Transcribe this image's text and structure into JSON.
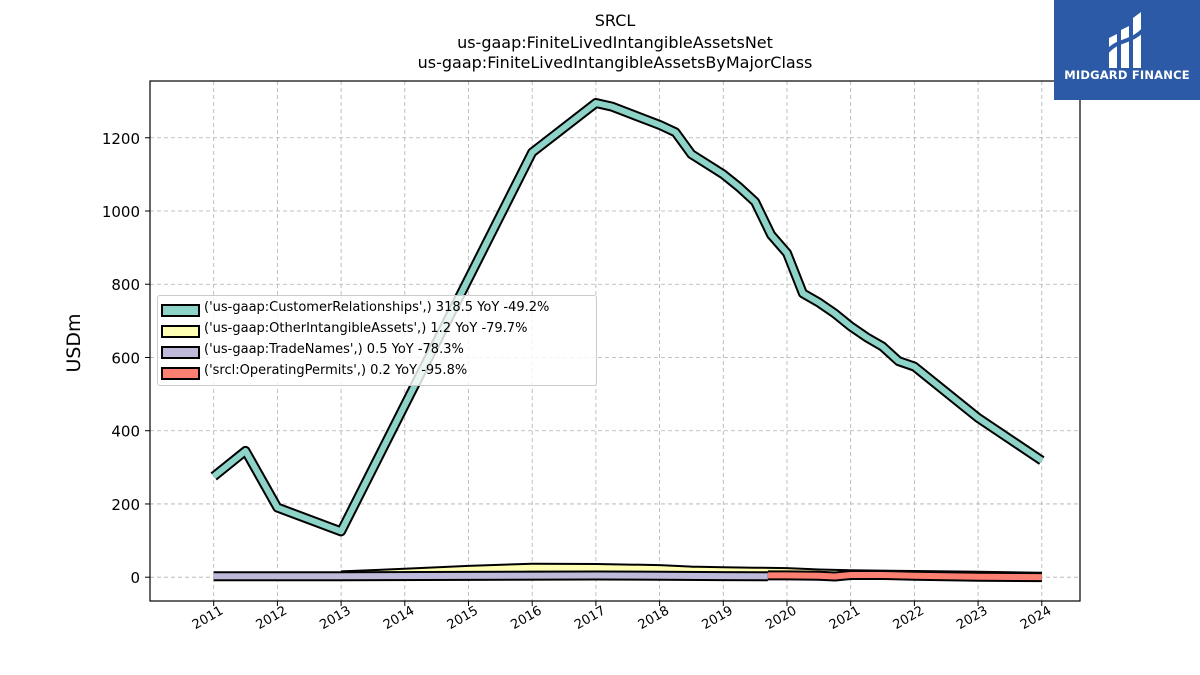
{
  "title": {
    "line1": "SRCL",
    "line2": "us-gaap:FiniteLivedIntangibleAssetsNet",
    "line3": "us-gaap:FiniteLivedIntangibleAssetsByMajorClass"
  },
  "logo": {
    "text": "MIDGARD FINANCE",
    "color": "#2d5aa6"
  },
  "legend": [
    {
      "label": "('us-gaap:CustomerRelationships',) 318.5 YoY -49.2%",
      "color": "#8dd3c7"
    },
    {
      "label": "('us-gaap:OtherIntangibleAssets',) 1.2 YoY -79.7%",
      "color": "#ffffb3"
    },
    {
      "label": "('us-gaap:TradeNames',) 0.5 YoY -78.3%",
      "color": "#bebada"
    },
    {
      "label": "('srcl:OperatingPermits',) 0.2 YoY -95.8%",
      "color": "#fb8072"
    }
  ],
  "chart_data": {
    "type": "line",
    "ylabel": "USDm",
    "xlabel": "",
    "ylim": [
      -65,
      1355
    ],
    "xlim": [
      2010.0,
      2024.6
    ],
    "yticks": [
      0,
      200,
      400,
      600,
      800,
      1000,
      1200
    ],
    "xticks": [
      "2011",
      "2012",
      "2013",
      "2014",
      "2015",
      "2016",
      "2017",
      "2018",
      "2019",
      "2020",
      "2021",
      "2022",
      "2023",
      "2024"
    ],
    "grid": true,
    "legend_position": "center-left",
    "series": [
      {
        "name": "('us-gaap:CustomerRelationships',)",
        "color": "#8dd3c7",
        "x": [
          2011.0,
          2011.5,
          2012.0,
          2013.0,
          2016.0,
          2017.0,
          2017.25,
          2018.0,
          2018.25,
          2018.5,
          2019.0,
          2019.25,
          2019.5,
          2019.75,
          2020.0,
          2020.25,
          2020.5,
          2020.75,
          2021.0,
          2021.25,
          2021.5,
          2021.75,
          2022.0,
          2023.0,
          2024.0
        ],
        "y": [
          275,
          345,
          190,
          125,
          1160,
          1295,
          1285,
          1235,
          1215,
          1155,
          1100,
          1065,
          1025,
          935,
          885,
          775,
          750,
          720,
          685,
          655,
          630,
          590,
          575,
          435,
          318.5
        ]
      },
      {
        "name": "('us-gaap:OtherIntangibleAssets',)",
        "color": "#ffffb3",
        "x": [
          2013.0,
          2014.0,
          2015.0,
          2016.0,
          2017.0,
          2018.0,
          2018.5,
          2019.0,
          2019.5,
          2020.0,
          2020.5,
          2021.0,
          2022.0,
          2023.0,
          2024.0
        ],
        "y": [
          5,
          12,
          20,
          26,
          25,
          22,
          18,
          16,
          15,
          14,
          10,
          8,
          6,
          4,
          1.2
        ]
      },
      {
        "name": "('us-gaap:TradeNames',)",
        "color": "#bebada",
        "x": [
          2011.0,
          2013.0,
          2017.0,
          2018.0,
          2019.0,
          2019.7
        ],
        "y": [
          2.5,
          2.5,
          4.5,
          4.0,
          3.0,
          2.5
        ]
      },
      {
        "name": "('srcl:OperatingPermits',)",
        "color": "#fb8072",
        "x": [
          2019.7,
          2020.0,
          2020.5,
          2020.75,
          2021.0,
          2021.5,
          2022.0,
          2023.0,
          2024.0
        ],
        "y": [
          5,
          5,
          4,
          2,
          6,
          6,
          4,
          1,
          0.2
        ]
      }
    ]
  }
}
